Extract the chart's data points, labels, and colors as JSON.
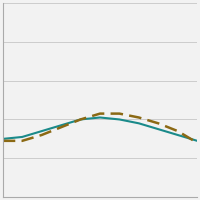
{
  "x": [
    0,
    1,
    2,
    3,
    4,
    5,
    6,
    7,
    8,
    9,
    10
  ],
  "solid_y": [
    30,
    31,
    34,
    37,
    40,
    41,
    40,
    38,
    35,
    32,
    29
  ],
  "dashed_y": [
    29,
    29,
    32,
    36,
    40,
    43,
    43,
    41,
    38,
    34,
    28
  ],
  "solid_color": "#1a8a8a",
  "dashed_color": "#8B6914",
  "background_color": "#f2f2f2",
  "grid_color": "#cccccc",
  "ylim": [
    0,
    100
  ],
  "xlim": [
    0,
    10
  ],
  "linewidth_solid": 1.5,
  "linewidth_dashed": 1.8,
  "dash_pattern": [
    5,
    2.5
  ]
}
